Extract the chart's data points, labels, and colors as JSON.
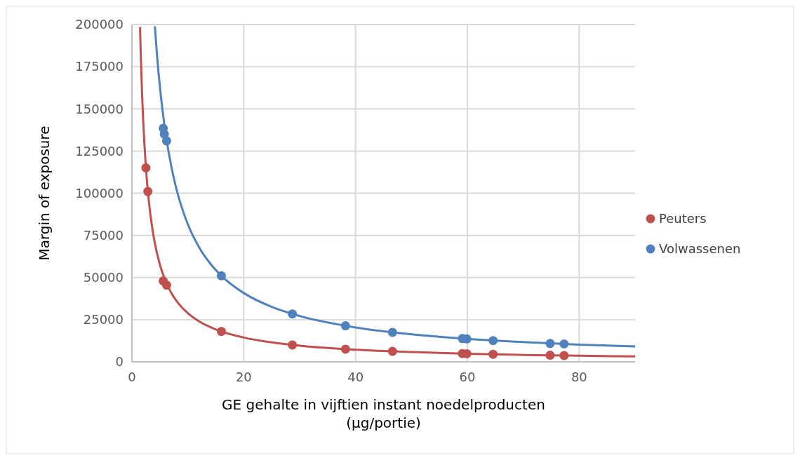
{
  "chart_data": {
    "type": "scatter",
    "xlabel": "GE gehalte in vijftien instant noedelproducten\n(µg/portie)",
    "ylabel": "Margin of exposure",
    "xlim": [
      0,
      90
    ],
    "xticks": [
      0,
      20,
      40,
      60,
      80
    ],
    "ylim": [
      0,
      200000
    ],
    "yticks": [
      0,
      25000,
      50000,
      75000,
      100000,
      125000,
      150000,
      175000,
      200000
    ],
    "grid": true,
    "legend": "right",
    "marker": "circle",
    "series": [
      {
        "type": "line",
        "color": "#c0504d",
        "marker": "none",
        "x": [
          1.45,
          1.6,
          1.8,
          2,
          2.5,
          3,
          3.5,
          4,
          5,
          6,
          7,
          8,
          10,
          12,
          15,
          20,
          25,
          30,
          40,
          50,
          60,
          70,
          80,
          90
        ],
        "values": [
          198600,
          180000,
          160000,
          144000,
          115200,
          96000,
          82300,
          72000,
          57600,
          48000,
          41100,
          36000,
          28800,
          24000,
          19200,
          14400,
          11500,
          9600,
          7200,
          5800,
          4800,
          4100,
          3600,
          3200
        ]
      },
      {
        "type": "line",
        "color": "#4f81bd",
        "marker": "none",
        "x": [
          4.1,
          4.5,
          5,
          5.5,
          6,
          7,
          8,
          9,
          10,
          12,
          14,
          16,
          20,
          25,
          30,
          40,
          50,
          60,
          70,
          80,
          90
        ],
        "values": [
          199000,
          181300,
          163200,
          148400,
          136000,
          116600,
          102000,
          90700,
          81600,
          68000,
          58300,
          51000,
          40800,
          32600,
          27200,
          20400,
          16300,
          13600,
          11700,
          10200,
          9100
        ]
      },
      {
        "name": "Peuters",
        "color": "#c0504d",
        "x": [
          2.5,
          2.85,
          5.6,
          5.8,
          6.2,
          16,
          28.7,
          38.2,
          46.6,
          59.1,
          59.9,
          64.6,
          74.8,
          77.3
        ],
        "values": [
          115000,
          101000,
          48000,
          null,
          45500,
          18000,
          10000,
          7500,
          6200,
          4900,
          4800,
          4500,
          3900,
          3700
        ]
      },
      {
        "name": "Volwassenen",
        "color": "#4f81bd",
        "x": [
          5.6,
          5.8,
          6.2,
          16,
          28.7,
          38.2,
          46.6,
          59.1,
          59.9,
          64.6,
          74.8,
          77.3
        ],
        "values": [
          138500,
          135000,
          131000,
          51000,
          28400,
          21400,
          17500,
          13800,
          13600,
          12600,
          10900,
          10600
        ]
      }
    ]
  }
}
